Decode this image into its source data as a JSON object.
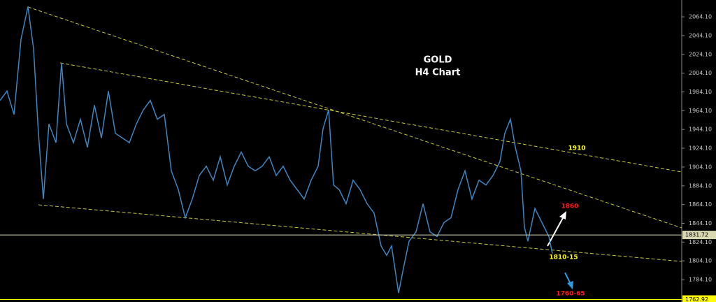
{
  "chart_data": {
    "type": "line",
    "title": "GOLD",
    "subtitle": "H4 Chart",
    "x": [
      0,
      10,
      20,
      30,
      40,
      48,
      55,
      62,
      70,
      80,
      88,
      95,
      105,
      115,
      125,
      135,
      145,
      155,
      165,
      175,
      185,
      195,
      205,
      215,
      225,
      235,
      245,
      255,
      265,
      275,
      285,
      295,
      305,
      315,
      325,
      335,
      345,
      355,
      365,
      375,
      385,
      395,
      405,
      415,
      425,
      435,
      445,
      455,
      462,
      470,
      477,
      485,
      495,
      505,
      515,
      525,
      535,
      545,
      553,
      560,
      570,
      578,
      585,
      595,
      605,
      615,
      625,
      635,
      645,
      655,
      665,
      675,
      685,
      695,
      705,
      715,
      722,
      730,
      737,
      745,
      750,
      755,
      765,
      775,
      785,
      790
    ],
    "series": [
      {
        "color": "#3f86c0",
        "values": [
          1975,
          1985,
          1960,
          2040,
          2075,
          2030,
          1940,
          1870,
          1950,
          1930,
          2015,
          1950,
          1930,
          1955,
          1925,
          1970,
          1935,
          1985,
          1940,
          1935,
          1930,
          1950,
          1965,
          1975,
          1955,
          1960,
          1900,
          1880,
          1850,
          1870,
          1895,
          1905,
          1890,
          1915,
          1885,
          1905,
          1920,
          1905,
          1900,
          1905,
          1915,
          1895,
          1905,
          1890,
          1880,
          1870,
          1890,
          1905,
          1945,
          1965,
          1885,
          1880,
          1865,
          1890,
          1880,
          1865,
          1855,
          1820,
          1810,
          1820,
          1770,
          1800,
          1825,
          1835,
          1865,
          1835,
          1830,
          1845,
          1850,
          1880,
          1900,
          1870,
          1890,
          1885,
          1895,
          1910,
          1940,
          1955,
          1925,
          1900,
          1840,
          1825,
          1860,
          1845,
          1830,
          1812
        ]
      }
    ],
    "xlim": [
      0,
      975
    ],
    "ylim": [
      1760.3,
      2082
    ],
    "yticks": [
      {
        "value": 2064.1,
        "label": "2064.10"
      },
      {
        "value": 2044.1,
        "label": "2044.10"
      },
      {
        "value": 2024.1,
        "label": "2024.10"
      },
      {
        "value": 2004.1,
        "label": "2004.10"
      },
      {
        "value": 1984.1,
        "label": "1984.10"
      },
      {
        "value": 1964.1,
        "label": "1964.10"
      },
      {
        "value": 1944.1,
        "label": "1944.10"
      },
      {
        "value": 1924.1,
        "label": "1924.10"
      },
      {
        "value": 1904.1,
        "label": "1904.10"
      },
      {
        "value": 1884.1,
        "label": "1884.10"
      },
      {
        "value": 1864.1,
        "label": "1864.10"
      },
      {
        "value": 1844.1,
        "label": "1844.10"
      },
      {
        "value": 1824.1,
        "label": "1824.10"
      },
      {
        "value": 1804.1,
        "label": "1804.10"
      },
      {
        "value": 1784.1,
        "label": "1784.10"
      }
    ],
    "hlines": [
      {
        "value": 1831.72,
        "label": "1831.72",
        "color": "#d8d8b0"
      },
      {
        "value": 1762.92,
        "label": "1762.92",
        "color": "#ffff00"
      }
    ],
    "annotations": [
      {
        "text": "1910",
        "color": "#ffff00"
      },
      {
        "text": "1860",
        "color": "#ff1a1a"
      },
      {
        "text": "1810-15",
        "color": "#ffff00"
      },
      {
        "text": "1760-65",
        "color": "#ff1a1a"
      }
    ]
  }
}
